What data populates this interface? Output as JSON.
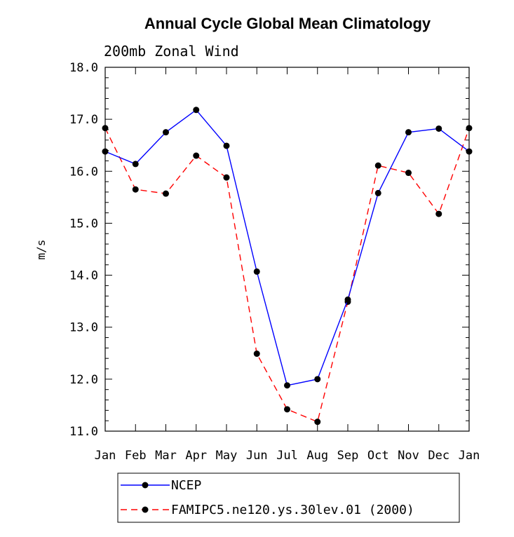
{
  "chart_data": {
    "type": "line",
    "title": "Annual Cycle Global Mean Climatology",
    "subtitle": "200mb Zonal Wind",
    "xlabel": "",
    "ylabel": "m/s",
    "categories": [
      "Jan",
      "Feb",
      "Mar",
      "Apr",
      "May",
      "Jun",
      "Jul",
      "Aug",
      "Sep",
      "Oct",
      "Nov",
      "Dec",
      "Jan"
    ],
    "ylim": [
      11.0,
      18.0
    ],
    "yticks": [
      "11.0",
      "12.0",
      "13.0",
      "14.0",
      "15.0",
      "16.0",
      "17.0",
      "18.0"
    ],
    "grid": false,
    "legend_position": "bottom",
    "series": [
      {
        "name": "NCEP",
        "color": "#0000ff",
        "dash": "solid",
        "values": [
          16.38,
          16.14,
          16.75,
          17.18,
          16.49,
          14.07,
          11.88,
          12.0,
          13.53,
          15.58,
          16.75,
          16.82,
          16.38
        ]
      },
      {
        "name": "FAMIPC5.ne120.ys.30lev.01 (2000)",
        "color": "#ff0000",
        "dash": "dashed",
        "values": [
          16.83,
          15.65,
          15.57,
          16.3,
          15.88,
          12.49,
          11.42,
          11.18,
          13.49,
          16.11,
          15.97,
          15.18,
          16.83
        ]
      }
    ]
  }
}
